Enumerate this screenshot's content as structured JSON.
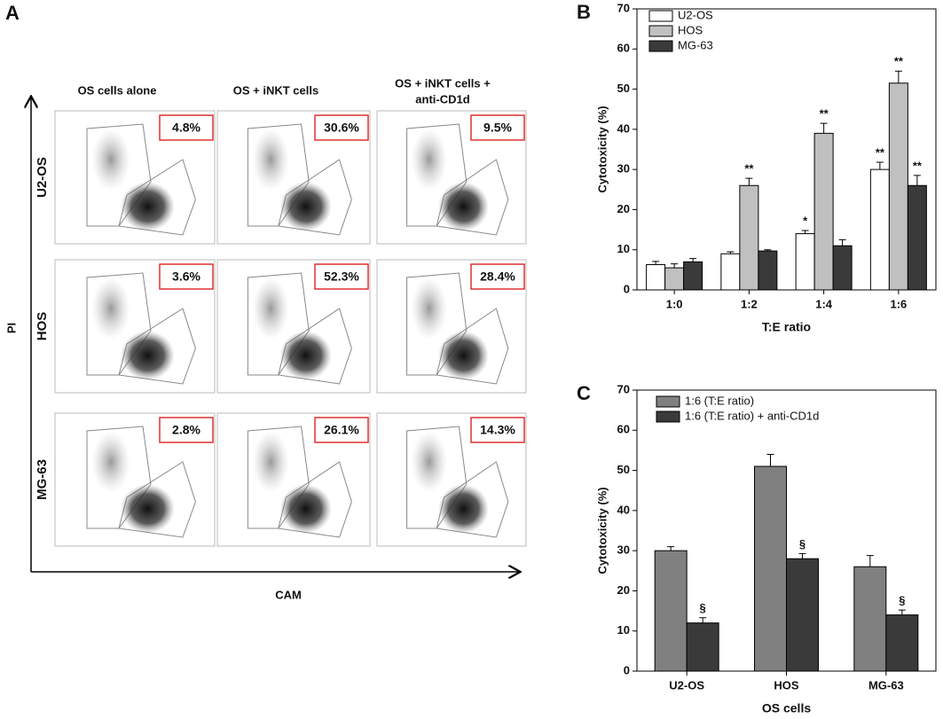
{
  "panel_a": {
    "label": "A",
    "columns": [
      "OS cells alone",
      "OS + iNKT cells",
      [
        "OS + iNKT cells +",
        "anti-CD1d"
      ]
    ],
    "rows": [
      "U2-OS",
      "HOS",
      "MG-63"
    ],
    "y_axis": "PI",
    "x_axis": "CAM",
    "percentages": [
      [
        "4.8%",
        "30.6%",
        "9.5%"
      ],
      [
        "3.6%",
        "52.3%",
        "28.4%"
      ],
      [
        "2.8%",
        "26.1%",
        "14.3%"
      ]
    ]
  },
  "chart_data": [
    {
      "type": "bar",
      "label": "B",
      "xlabel": "T:E ratio",
      "ylabel": "Cytotoxicity (%)",
      "categories": [
        "1:0",
        "1:2",
        "1:4",
        "1:6"
      ],
      "ylim": [
        0,
        70
      ],
      "yticks": [
        0,
        10,
        20,
        30,
        40,
        50,
        60,
        70
      ],
      "series": [
        {
          "name": "U2-OS",
          "color": "#ffffff",
          "values": [
            6.3,
            9,
            14,
            30
          ],
          "errors": [
            0.8,
            0.5,
            0.8,
            1.8
          ],
          "significance": [
            null,
            null,
            "*",
            "**"
          ]
        },
        {
          "name": "HOS",
          "color": "#c0c0c0",
          "values": [
            5.5,
            26,
            39,
            51.5
          ],
          "errors": [
            1,
            1.8,
            2.5,
            3
          ],
          "significance": [
            null,
            "**",
            "**",
            "**"
          ]
        },
        {
          "name": "MG-63",
          "color": "#3a3a3a",
          "values": [
            7,
            9.7,
            11,
            26
          ],
          "errors": [
            0.8,
            0.3,
            1.5,
            2.5
          ],
          "significance": [
            null,
            null,
            null,
            "**"
          ]
        }
      ]
    },
    {
      "type": "bar",
      "label": "C",
      "xlabel": "OS cells",
      "ylabel": "Cytotoxicity (%)",
      "categories": [
        "U2-OS",
        "HOS",
        "MG-63"
      ],
      "ylim": [
        0,
        70
      ],
      "yticks": [
        0,
        10,
        20,
        30,
        40,
        50,
        60,
        70
      ],
      "series": [
        {
          "name": "1:6 (T:E ratio)",
          "color": "#808080",
          "values": [
            30,
            51,
            26
          ],
          "errors": [
            1,
            3,
            2.8
          ],
          "significance": [
            null,
            null,
            null
          ]
        },
        {
          "name": "1:6 (T:E ratio) + anti-CD1d",
          "color": "#3a3a3a",
          "values": [
            12,
            28,
            14
          ],
          "errors": [
            1.3,
            1.3,
            1.2
          ],
          "significance": [
            "§",
            "§",
            "§"
          ]
        }
      ]
    }
  ]
}
